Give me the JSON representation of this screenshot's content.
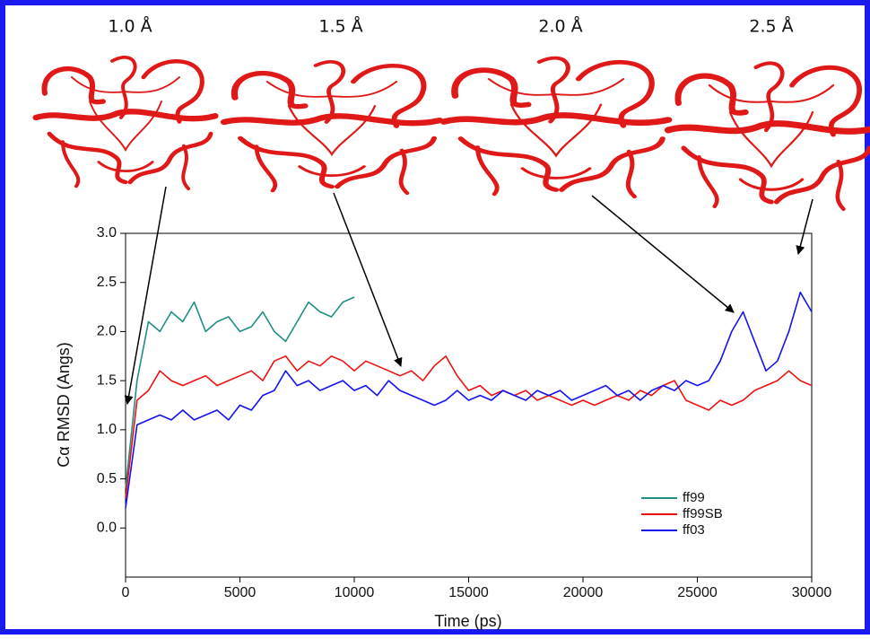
{
  "chart_data": {
    "type": "line",
    "annotations": [
      "1.0 Å",
      "1.5 Å",
      "2.0 Å",
      "2.5 Å"
    ],
    "y_label": "Cα RMSD (Angs)",
    "x_label": "Time (ps)",
    "x": [
      0,
      500,
      1000,
      1500,
      2000,
      2500,
      3000,
      3500,
      4000,
      4500,
      5000,
      5500,
      6000,
      6500,
      7000,
      7500,
      8000,
      8500,
      9000,
      9500,
      10000,
      10500,
      11000,
      11500,
      12000,
      12500,
      13000,
      13500,
      14000,
      14500,
      15000,
      15500,
      16000,
      16500,
      17000,
      17500,
      18000,
      18500,
      19000,
      19500,
      20000,
      20500,
      21000,
      21500,
      22000,
      22500,
      23000,
      23500,
      24000,
      24500,
      25000,
      25500,
      26000,
      26500,
      27000,
      27500,
      28000,
      28500,
      29000,
      29500,
      30000
    ],
    "series": [
      {
        "name": "ff99",
        "color": "#1f8f86",
        "values": [
          0.4,
          1.5,
          2.1,
          2.0,
          2.2,
          2.1,
          2.3,
          2.0,
          2.1,
          2.15,
          2.0,
          2.05,
          2.2,
          2.0,
          1.9,
          2.1,
          2.3,
          2.2,
          2.15,
          2.3,
          2.35,
          null,
          null,
          null,
          null,
          null,
          null,
          null,
          null,
          null,
          null,
          null,
          null,
          null,
          null,
          null,
          null,
          null,
          null,
          null,
          null,
          null,
          null,
          null,
          null,
          null,
          null,
          null,
          null,
          null,
          null,
          null,
          null,
          null,
          null,
          null,
          null,
          null,
          null,
          null,
          null
        ]
      },
      {
        "name": "ff99SB",
        "color": "#ee1111",
        "values": [
          0.3,
          1.3,
          1.4,
          1.6,
          1.5,
          1.45,
          1.5,
          1.55,
          1.45,
          1.5,
          1.55,
          1.6,
          1.5,
          1.7,
          1.75,
          1.6,
          1.7,
          1.65,
          1.75,
          1.7,
          1.6,
          1.7,
          1.65,
          1.6,
          1.55,
          1.6,
          1.5,
          1.65,
          1.75,
          1.55,
          1.4,
          1.45,
          1.35,
          1.4,
          1.35,
          1.4,
          1.3,
          1.35,
          1.3,
          1.25,
          1.3,
          1.25,
          1.3,
          1.35,
          1.3,
          1.4,
          1.35,
          1.45,
          1.5,
          1.3,
          1.25,
          1.2,
          1.3,
          1.25,
          1.3,
          1.4,
          1.45,
          1.5,
          1.6,
          1.5,
          1.45
        ]
      },
      {
        "name": "ff03",
        "color": "#1414ee",
        "values": [
          0.2,
          1.05,
          1.1,
          1.15,
          1.1,
          1.2,
          1.1,
          1.15,
          1.2,
          1.1,
          1.25,
          1.2,
          1.35,
          1.4,
          1.6,
          1.45,
          1.5,
          1.4,
          1.45,
          1.5,
          1.4,
          1.45,
          1.35,
          1.5,
          1.4,
          1.35,
          1.3,
          1.25,
          1.3,
          1.4,
          1.3,
          1.35,
          1.3,
          1.4,
          1.35,
          1.3,
          1.4,
          1.35,
          1.4,
          1.3,
          1.35,
          1.4,
          1.45,
          1.35,
          1.4,
          1.3,
          1.4,
          1.45,
          1.4,
          1.5,
          1.45,
          1.5,
          1.7,
          2.0,
          2.2,
          1.9,
          1.6,
          1.7,
          2.0,
          2.4,
          2.2
        ]
      }
    ],
    "xlim": [
      0,
      30000
    ],
    "xticks": [
      0,
      5000,
      10000,
      15000,
      20000,
      25000,
      30000
    ],
    "ylim": [
      -0.5,
      3.0
    ],
    "yticks": [
      {
        "value": 0,
        "label": "0.0"
      },
      0.5,
      {
        "value": 1,
        "label": "1.0"
      },
      1.5,
      {
        "value": 2,
        "label": "2.0"
      },
      2.5,
      {
        "value": 3,
        "label": "3.0"
      }
    ],
    "legend": "lower right"
  }
}
